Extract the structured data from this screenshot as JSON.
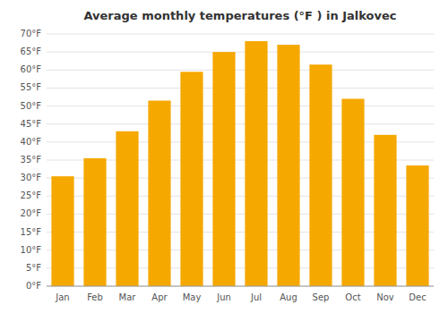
{
  "chart_data": {
    "type": "bar",
    "title": "Average monthly temperatures (°F ) in Jalkovec",
    "categories": [
      "Jan",
      "Feb",
      "Mar",
      "Apr",
      "May",
      "Jun",
      "Jul",
      "Aug",
      "Sep",
      "Oct",
      "Nov",
      "Dec"
    ],
    "values": [
      30.5,
      35.5,
      43,
      51.5,
      59.5,
      65,
      68,
      67,
      61.5,
      52,
      42,
      33.5
    ],
    "color": "#F5A800",
    "ylim": [
      0,
      70
    ],
    "yticks": [
      {
        "value": 0,
        "label": "0°F"
      },
      {
        "value": 5,
        "label": "5°F"
      },
      {
        "value": 10,
        "label": "10°F"
      },
      {
        "value": 15,
        "label": "15°F"
      },
      {
        "value": 20,
        "label": "20°F"
      },
      {
        "value": 25,
        "label": "25°F"
      },
      {
        "value": 30,
        "label": "30°F"
      },
      {
        "value": 35,
        "label": "35°F"
      },
      {
        "value": 40,
        "label": "40°F"
      },
      {
        "value": 45,
        "label": "45°F"
      },
      {
        "value": 50,
        "label": "50°F"
      },
      {
        "value": 55,
        "label": "55°F"
      },
      {
        "value": 60,
        "label": "60°F"
      },
      {
        "value": 65,
        "label": "65°F"
      },
      {
        "value": 70,
        "label": "70°F"
      }
    ],
    "grid": true
  }
}
